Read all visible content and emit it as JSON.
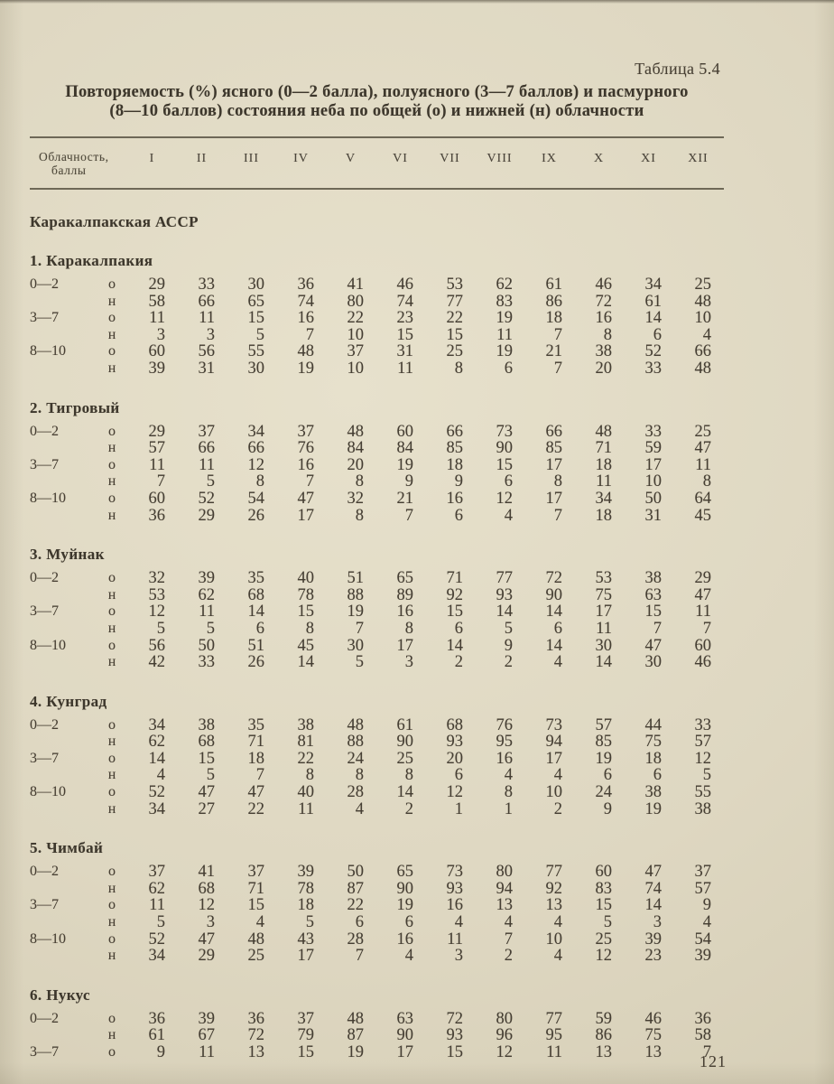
{
  "page": {
    "table_label": "Таблица 5.4",
    "title_line1": "Повторяемость (%) ясного (0—2 балла), полуясного (3—7 баллов) и пасмурного",
    "title_line2": "(8—10 баллов) состояния неба по общей (о) и нижней (н) облачности",
    "page_number": "121"
  },
  "table": {
    "header": {
      "col0_line1": "Облачность,",
      "col0_line2": "баллы",
      "months": [
        "I",
        "II",
        "III",
        "IV",
        "V",
        "VI",
        "VII",
        "VIII",
        "IX",
        "X",
        "XI",
        "XII"
      ]
    },
    "region": "Каракалпакская АССР",
    "stations": [
      {
        "name": "1. Каракалпакия",
        "rows": [
          {
            "range": "0—2",
            "kind": "о",
            "values": [
              29,
              33,
              30,
              36,
              41,
              46,
              53,
              62,
              61,
              46,
              34,
              25
            ]
          },
          {
            "range": "",
            "kind": "н",
            "values": [
              58,
              66,
              65,
              74,
              80,
              74,
              77,
              83,
              86,
              72,
              61,
              48
            ]
          },
          {
            "range": "3—7",
            "kind": "о",
            "values": [
              11,
              11,
              15,
              16,
              22,
              23,
              22,
              19,
              18,
              16,
              14,
              10
            ]
          },
          {
            "range": "",
            "kind": "н",
            "values": [
              3,
              3,
              5,
              7,
              10,
              15,
              15,
              11,
              7,
              8,
              6,
              4
            ]
          },
          {
            "range": "8—10",
            "kind": "о",
            "values": [
              60,
              56,
              55,
              48,
              37,
              31,
              25,
              19,
              21,
              38,
              52,
              66
            ]
          },
          {
            "range": "",
            "kind": "н",
            "values": [
              39,
              31,
              30,
              19,
              10,
              11,
              8,
              6,
              7,
              20,
              33,
              48
            ]
          }
        ]
      },
      {
        "name": "2. Тигровый",
        "rows": [
          {
            "range": "0—2",
            "kind": "о",
            "values": [
              29,
              37,
              34,
              37,
              48,
              60,
              66,
              73,
              66,
              48,
              33,
              25
            ]
          },
          {
            "range": "",
            "kind": "н",
            "values": [
              57,
              66,
              66,
              76,
              84,
              84,
              85,
              90,
              85,
              71,
              59,
              47
            ]
          },
          {
            "range": "3—7",
            "kind": "о",
            "values": [
              11,
              11,
              12,
              16,
              20,
              19,
              18,
              15,
              17,
              18,
              17,
              11
            ]
          },
          {
            "range": "",
            "kind": "н",
            "values": [
              7,
              5,
              8,
              7,
              8,
              9,
              9,
              6,
              8,
              11,
              10,
              8
            ]
          },
          {
            "range": "8—10",
            "kind": "о",
            "values": [
              60,
              52,
              54,
              47,
              32,
              21,
              16,
              12,
              17,
              34,
              50,
              64
            ]
          },
          {
            "range": "",
            "kind": "н",
            "values": [
              36,
              29,
              26,
              17,
              8,
              7,
              6,
              4,
              7,
              18,
              31,
              45
            ]
          }
        ]
      },
      {
        "name": "3. Муйнак",
        "rows": [
          {
            "range": "0—2",
            "kind": "о",
            "values": [
              32,
              39,
              35,
              40,
              51,
              65,
              71,
              77,
              72,
              53,
              38,
              29
            ]
          },
          {
            "range": "",
            "kind": "н",
            "values": [
              53,
              62,
              68,
              78,
              88,
              89,
              92,
              93,
              90,
              75,
              63,
              47
            ]
          },
          {
            "range": "3—7",
            "kind": "о",
            "values": [
              12,
              11,
              14,
              15,
              19,
              16,
              15,
              14,
              14,
              17,
              15,
              11
            ]
          },
          {
            "range": "",
            "kind": "н",
            "values": [
              5,
              5,
              6,
              8,
              7,
              8,
              6,
              5,
              6,
              11,
              7,
              7
            ]
          },
          {
            "range": "8—10",
            "kind": "о",
            "values": [
              56,
              50,
              51,
              45,
              30,
              17,
              14,
              9,
              14,
              30,
              47,
              60
            ]
          },
          {
            "range": "",
            "kind": "н",
            "values": [
              42,
              33,
              26,
              14,
              5,
              3,
              2,
              2,
              4,
              14,
              30,
              46
            ]
          }
        ]
      },
      {
        "name": "4. Кунград",
        "rows": [
          {
            "range": "0—2",
            "kind": "о",
            "values": [
              34,
              38,
              35,
              38,
              48,
              61,
              68,
              76,
              73,
              57,
              44,
              33
            ]
          },
          {
            "range": "",
            "kind": "н",
            "values": [
              62,
              68,
              71,
              81,
              88,
              90,
              93,
              95,
              94,
              85,
              75,
              57
            ]
          },
          {
            "range": "3—7",
            "kind": "о",
            "values": [
              14,
              15,
              18,
              22,
              24,
              25,
              20,
              16,
              17,
              19,
              18,
              12
            ]
          },
          {
            "range": "",
            "kind": "н",
            "values": [
              4,
              5,
              7,
              8,
              8,
              8,
              6,
              4,
              4,
              6,
              6,
              5
            ]
          },
          {
            "range": "8—10",
            "kind": "о",
            "values": [
              52,
              47,
              47,
              40,
              28,
              14,
              12,
              8,
              10,
              24,
              38,
              55
            ]
          },
          {
            "range": "",
            "kind": "н",
            "values": [
              34,
              27,
              22,
              11,
              4,
              2,
              1,
              1,
              2,
              9,
              19,
              38
            ]
          }
        ]
      },
      {
        "name": "5. Чимбай",
        "rows": [
          {
            "range": "0—2",
            "kind": "о",
            "values": [
              37,
              41,
              37,
              39,
              50,
              65,
              73,
              80,
              77,
              60,
              47,
              37
            ]
          },
          {
            "range": "",
            "kind": "н",
            "values": [
              62,
              68,
              71,
              78,
              87,
              90,
              93,
              94,
              92,
              83,
              74,
              57
            ]
          },
          {
            "range": "3—7",
            "kind": "о",
            "values": [
              11,
              12,
              15,
              18,
              22,
              19,
              16,
              13,
              13,
              15,
              14,
              9
            ]
          },
          {
            "range": "",
            "kind": "н",
            "values": [
              5,
              3,
              4,
              5,
              6,
              6,
              4,
              4,
              4,
              5,
              3,
              4
            ]
          },
          {
            "range": "8—10",
            "kind": "о",
            "values": [
              52,
              47,
              48,
              43,
              28,
              16,
              11,
              7,
              10,
              25,
              39,
              54
            ]
          },
          {
            "range": "",
            "kind": "н",
            "values": [
              34,
              29,
              25,
              17,
              7,
              4,
              3,
              2,
              4,
              12,
              23,
              39
            ]
          }
        ]
      },
      {
        "name": "6. Нукус",
        "rows": [
          {
            "range": "0—2",
            "kind": "о",
            "values": [
              36,
              39,
              36,
              37,
              48,
              63,
              72,
              80,
              77,
              59,
              46,
              36
            ]
          },
          {
            "range": "",
            "kind": "н",
            "values": [
              61,
              67,
              72,
              79,
              87,
              90,
              93,
              96,
              95,
              86,
              75,
              58
            ]
          },
          {
            "range": "3—7",
            "kind": "о",
            "values": [
              9,
              11,
              13,
              15,
              19,
              17,
              15,
              12,
              11,
              13,
              13,
              7
            ]
          }
        ]
      }
    ]
  }
}
